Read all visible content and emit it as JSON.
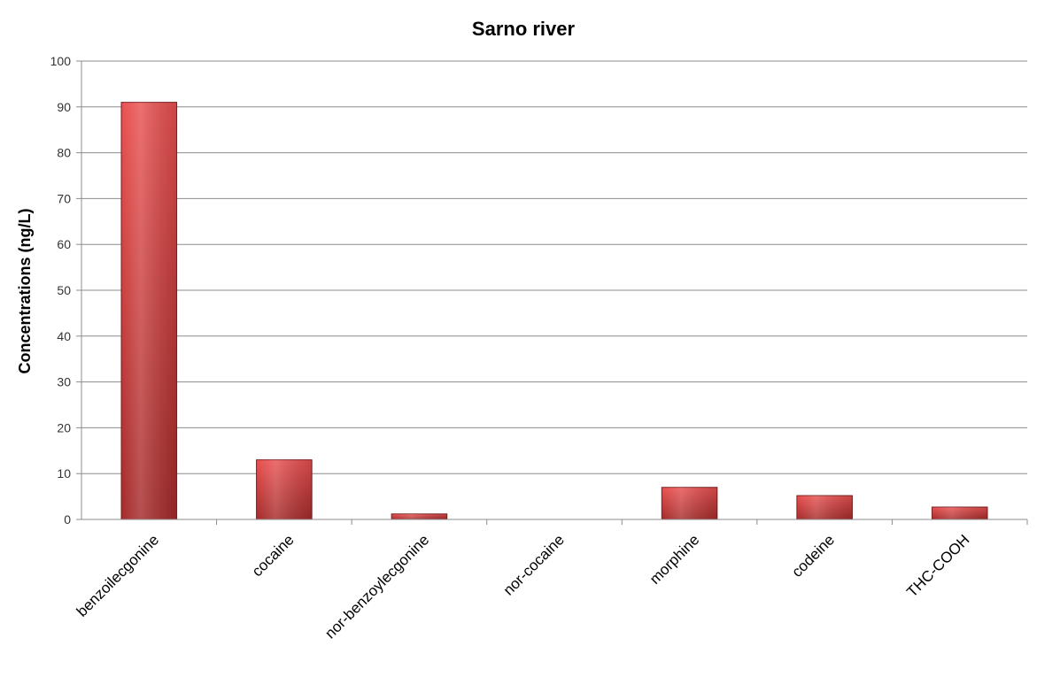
{
  "chart_data": {
    "type": "bar",
    "title": "Sarno river",
    "xlabel": "",
    "ylabel": "Concentrations (ng/L)",
    "ylim": [
      0,
      100
    ],
    "yticks": [
      0,
      10,
      20,
      30,
      40,
      50,
      60,
      70,
      80,
      90,
      100
    ],
    "grid": true,
    "legend": "none",
    "categories": [
      "benzoilecgonine",
      "cocaine",
      "nor-benzoylecgonine",
      "nor-cocaine",
      "morphine",
      "codeine",
      "THC-COOH"
    ],
    "values": [
      91,
      13,
      1.2,
      0,
      7,
      5.2,
      2.7
    ],
    "colors": {
      "bar_light": "#e8504f",
      "bar_dark": "#a52a2a",
      "bar_stroke": "#7a1f1f",
      "grid": "#8c8c8c"
    }
  }
}
